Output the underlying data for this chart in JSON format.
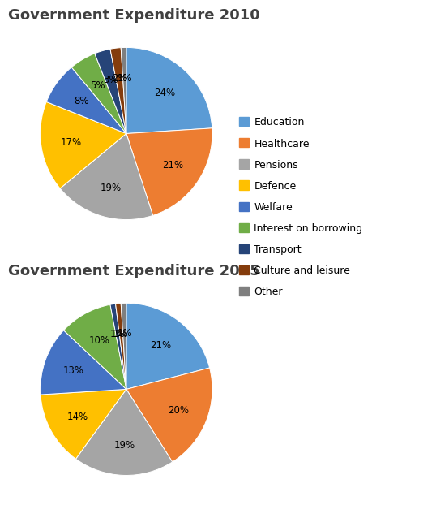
{
  "title_2010": "Government Expenditure 2010",
  "title_2015": "Government Expenditure 2015",
  "categories": [
    "Education",
    "Healthcare",
    "Pensions",
    "Defence",
    "Welfare",
    "Interest on borrowing",
    "Transport",
    "Culture and leisure",
    "Other"
  ],
  "values_2010": [
    24,
    21,
    19,
    17,
    8,
    5,
    3,
    2,
    1
  ],
  "values_2015": [
    21,
    20,
    19,
    14,
    13,
    10,
    1,
    1,
    1
  ],
  "colors": [
    "#5b9bd5",
    "#ed7d31",
    "#a5a5a5",
    "#ffc000",
    "#4472c4",
    "#70ad47",
    "#264478",
    "#843c0c",
    "#7f7f7f"
  ],
  "legend_labels": [
    "Education",
    "Healthcare",
    "Pensions",
    "Defence",
    "Welfare",
    "Interest on borrowing",
    "Transport",
    "Culture and leisure",
    "Other"
  ],
  "title_fontsize": 13,
  "label_fontsize": 8.5,
  "legend_fontsize": 9,
  "bg_color": "#ffffff"
}
